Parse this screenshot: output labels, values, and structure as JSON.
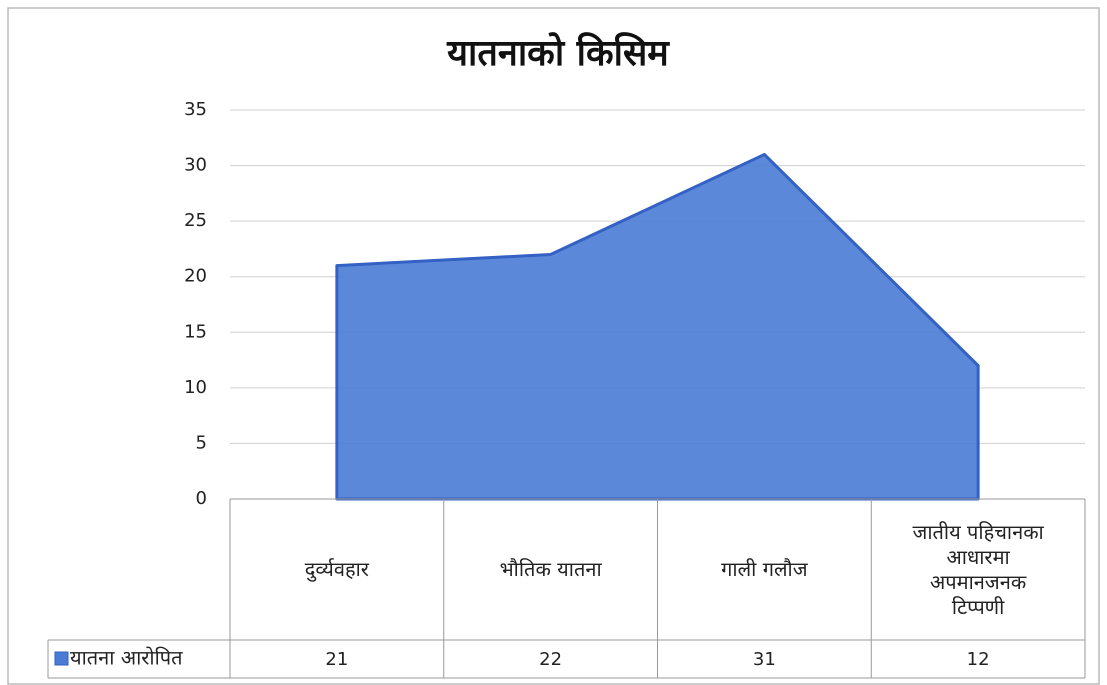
{
  "chart_data": {
    "type": "area",
    "title": "यातनाको किसिम",
    "categories": [
      "दुर्व्यवहार",
      "भौतिक यातना",
      "गाली गलौज",
      "जातीय पहिचानका आधारमा अपमानजनक टिप्पणी"
    ],
    "series": [
      {
        "name": "यातना आरोपित",
        "color": "#4a7bd5",
        "values": [
          21,
          22,
          31,
          12
        ]
      }
    ],
    "ylim": [
      0,
      35
    ],
    "yticks": [
      0,
      5,
      10,
      15,
      20,
      25,
      30,
      35
    ],
    "grid": true,
    "data_table": true
  }
}
